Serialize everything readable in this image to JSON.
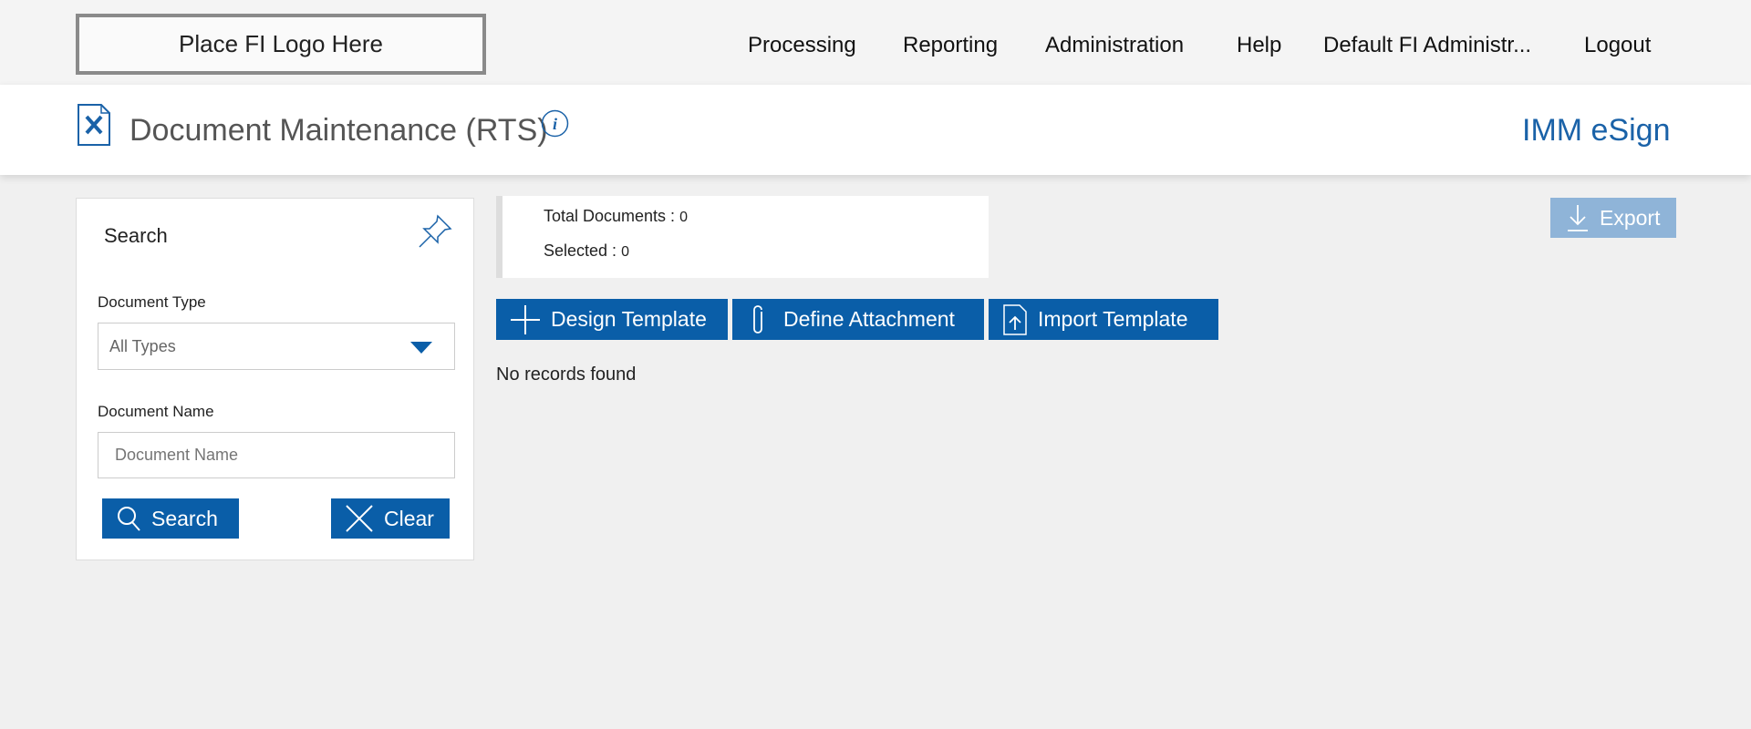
{
  "topbar": {
    "logo": "Place FI Logo Here",
    "nav": [
      "Processing",
      "Reporting",
      "Administration",
      "Help",
      "Default FI Administr...",
      "Logout"
    ]
  },
  "header": {
    "title": "Document Maintenance (RTS)",
    "brand": "IMM eSign",
    "accent": "#1a62a8"
  },
  "search": {
    "title": "Search",
    "document_type_label": "Document Type",
    "document_type_value": "All Types",
    "document_name_label": "Document Name",
    "document_name_placeholder": "Document Name",
    "search_button": "Search",
    "clear_button": "Clear"
  },
  "stats": {
    "total_label": "Total Documents :",
    "total_value": "0",
    "selected_label": "Selected :",
    "selected_value": "0"
  },
  "toolbar": {
    "design": "Design Template",
    "define": "Define Attachment",
    "import": "Import Template",
    "export": "Export"
  },
  "results": {
    "empty": "No records found"
  }
}
